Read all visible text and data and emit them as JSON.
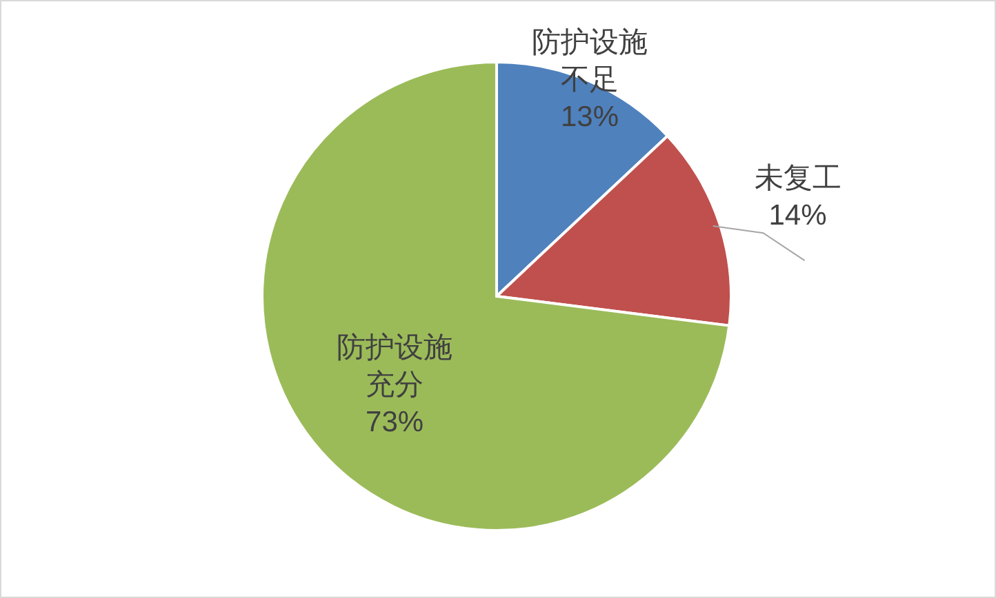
{
  "chart_data": {
    "type": "pie",
    "categories": [
      "防护设施不足",
      "未复工",
      "防护设施充分"
    ],
    "values": [
      13,
      14,
      73
    ],
    "value_labels": [
      "13%",
      "14%",
      "73%"
    ],
    "colors": [
      "#4f81bd",
      "#c0504d",
      "#9bbb59"
    ]
  }
}
